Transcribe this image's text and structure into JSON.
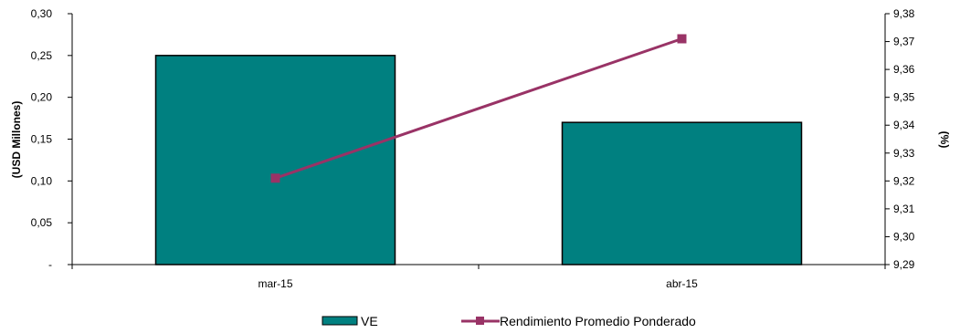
{
  "chart_data": {
    "type": "bar",
    "categories": [
      "mar-15",
      "abr-15"
    ],
    "series": [
      {
        "name": "VE",
        "type": "bar",
        "axis": "left",
        "values": [
          0.25,
          0.17
        ],
        "color": "#008080"
      },
      {
        "name": "Rendimiento Promedio Ponderado",
        "type": "line",
        "axis": "right",
        "values": [
          9.321,
          9.371
        ],
        "color": "#993366",
        "marker": "square"
      }
    ],
    "ylabel": "(USD Millones)",
    "ylim": [
      0,
      0.3
    ],
    "yticks": [
      "-",
      "0,05",
      "0,10",
      "0,15",
      "0,20",
      "0,25",
      "0,30"
    ],
    "y2label": "(%)",
    "y2lim": [
      9.29,
      9.38
    ],
    "y2ticks": [
      "9,29",
      "9,30",
      "9,31",
      "9,32",
      "9,33",
      "9,34",
      "9,35",
      "9,36",
      "9,37",
      "9,38"
    ],
    "grid": false,
    "legend": "bottom"
  }
}
